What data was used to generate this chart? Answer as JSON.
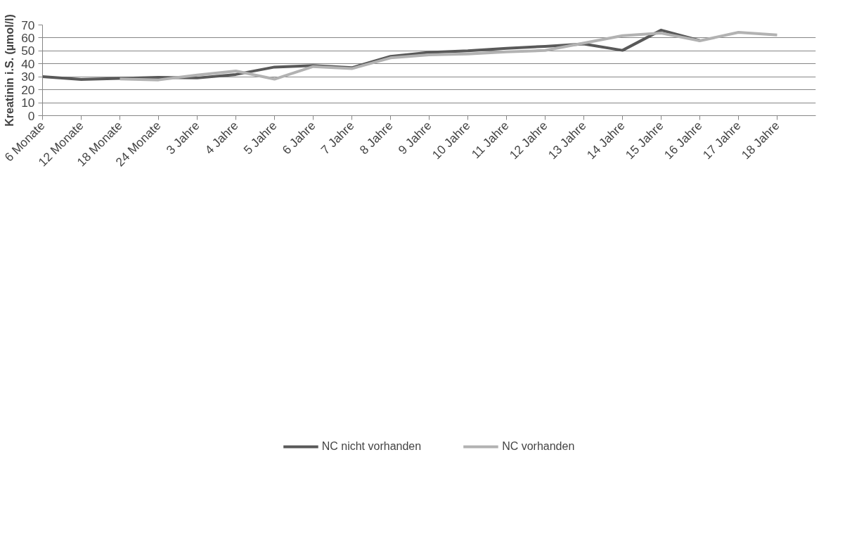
{
  "chart_data": {
    "type": "line",
    "ylabel": "Kreatinin i.S. (µmol/l)",
    "categories": [
      "6 Monate",
      "12 Monate",
      "18 Monate",
      "24 Monate",
      "3 Jahre",
      "4 Jahre",
      "5 Jahre",
      "6 Jahre",
      "7 Jahre",
      "8 Jahre",
      "9 Jahre",
      "10 Jahre",
      "11 Jahre",
      "12 Jahre",
      "13 Jahre",
      "14 Jahre",
      "15 Jahre",
      "16 Jahre",
      "17 Jahre",
      "18 Jahre"
    ],
    "series": [
      {
        "name": "NC nicht vorhanden",
        "color": "#595959",
        "values": [
          30.1,
          27.9,
          28.8,
          29.6,
          29.1,
          31.8,
          37.5,
          38.6,
          37.0,
          45.7,
          48.9,
          50.1,
          52.0,
          53.5,
          55.4,
          50.4,
          66.0,
          58.0,
          null,
          null
        ]
      },
      {
        "name": "NC vorhanden",
        "color": "#b2b2b2",
        "values": [
          null,
          null,
          28.3,
          27.6,
          31.3,
          34.5,
          28.2,
          37.9,
          36.3,
          44.6,
          46.9,
          47.6,
          49.2,
          50.3,
          56.0,
          61.7,
          63.7,
          57.8,
          64.3,
          62.3
        ]
      }
    ],
    "ylim": [
      0,
      70
    ],
    "yticks": [
      0,
      10,
      20,
      30,
      40,
      50,
      60,
      70
    ],
    "grid": "y",
    "legend": "bottom",
    "marker": "none",
    "line_style": "solid"
  }
}
